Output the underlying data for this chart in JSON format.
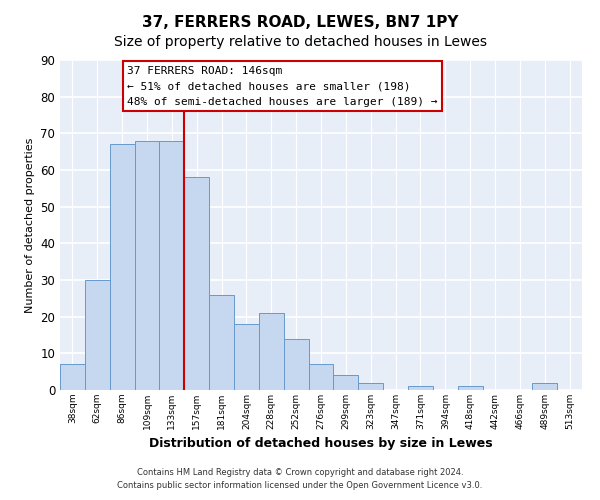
{
  "title_line1": "37, FERRERS ROAD, LEWES, BN7 1PY",
  "title_line2": "Size of property relative to detached houses in Lewes",
  "xlabel": "Distribution of detached houses by size in Lewes",
  "ylabel": "Number of detached properties",
  "bar_labels": [
    "38sqm",
    "62sqm",
    "86sqm",
    "109sqm",
    "133sqm",
    "157sqm",
    "181sqm",
    "204sqm",
    "228sqm",
    "252sqm",
    "276sqm",
    "299sqm",
    "323sqm",
    "347sqm",
    "371sqm",
    "394sqm",
    "418sqm",
    "442sqm",
    "466sqm",
    "489sqm",
    "513sqm"
  ],
  "bar_heights": [
    7,
    30,
    67,
    68,
    68,
    58,
    26,
    18,
    21,
    14,
    7,
    4,
    2,
    0,
    1,
    0,
    1,
    0,
    0,
    2,
    0
  ],
  "bar_color": "#c5d8f0",
  "bar_edge_color": "#6699cc",
  "vline_x": 4.5,
  "vline_color": "#cc0000",
  "annotation_title": "37 FERRERS ROAD: 146sqm",
  "annotation_line1": "← 51% of detached houses are smaller (198)",
  "annotation_line2": "48% of semi-detached houses are larger (189) →",
  "annotation_box_facecolor": "#ffffff",
  "annotation_box_edgecolor": "#cc0000",
  "ylim": [
    0,
    90
  ],
  "yticks": [
    0,
    10,
    20,
    30,
    40,
    50,
    60,
    70,
    80,
    90
  ],
  "footer_line1": "Contains HM Land Registry data © Crown copyright and database right 2024.",
  "footer_line2": "Contains public sector information licensed under the Open Government Licence v3.0.",
  "fig_background_color": "#ffffff",
  "ax_background_color": "#e8eef8",
  "grid_color": "#ffffff",
  "title_fontsize": 11,
  "subtitle_fontsize": 10
}
